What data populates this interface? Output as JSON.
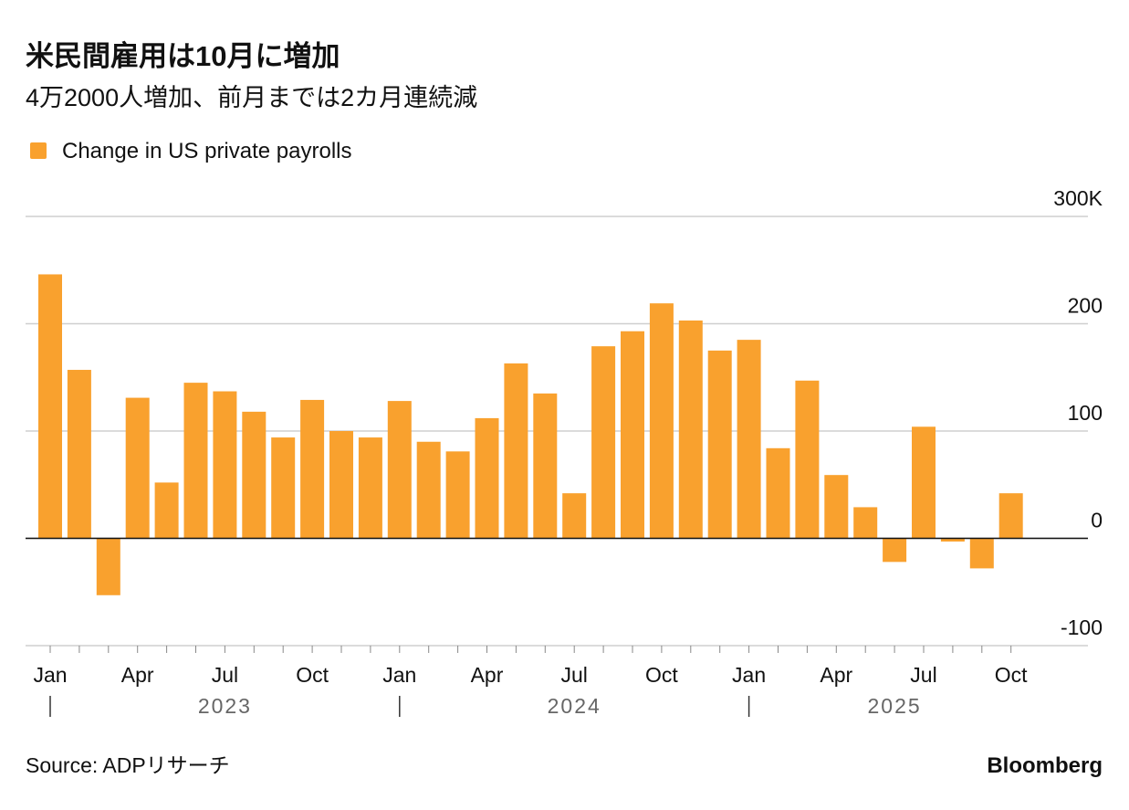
{
  "chart_data": {
    "type": "bar",
    "title": "米民間雇用は10月に増加",
    "subtitle": "4万2000人増加、前月までは2カ月連続減",
    "source": "Source: ADPリサーチ",
    "brand": "Bloomberg",
    "categories": [
      "Jan",
      null,
      null,
      "Apr",
      null,
      null,
      "Jul",
      null,
      null,
      "Oct",
      null,
      null,
      "Jan",
      null,
      null,
      "Apr",
      null,
      null,
      "Jul",
      null,
      null,
      "Oct",
      null,
      null,
      "Jan",
      null,
      null,
      "Apr",
      null,
      null,
      "Jul",
      null,
      null,
      "Oct"
    ],
    "year_labels": [
      "2023",
      "2024",
      "2025"
    ],
    "series": [
      {
        "name": "Change in US private payrolls",
        "color": "#f9a12e",
        "values": [
          246,
          157,
          -53,
          131,
          52,
          145,
          137,
          118,
          94,
          129,
          100,
          94,
          128,
          90,
          81,
          112,
          163,
          135,
          42,
          179,
          193,
          219,
          203,
          175,
          185,
          84,
          147,
          59,
          29,
          -22,
          104,
          -3,
          -28,
          42
        ]
      }
    ],
    "ylim": [
      -100,
      300
    ],
    "yticks": [
      -100,
      0,
      100,
      200,
      {
        "value": 300,
        "label": "300K"
      }
    ],
    "grid": true
  }
}
